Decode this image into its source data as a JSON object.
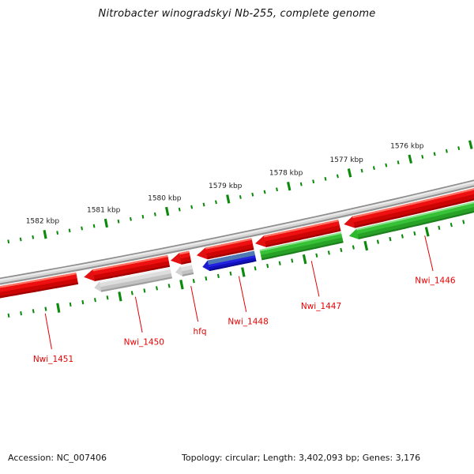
{
  "title": "Nitrobacter winogradskyi Nb-255, complete genome",
  "status_bar": {
    "accession": "Accession: NC_007406",
    "info": "Topology: circular; Length: 3,402,093 bp; Genes: 3,176"
  },
  "chart_data": {
    "type": "other",
    "subtype": "zoomed circular genome map (CGView style)",
    "title": "Nitrobacter winogradskyi Nb-255, complete genome",
    "position_unit": "kbp",
    "visible_range_kbp": [
      1574.4,
      1584.3
    ],
    "orientation": "positions decrease left to right; gene arrows point left (toward higher coordinate)",
    "ruler": {
      "major_tick_interval_kbp": 1,
      "minor_tick_interval_kbp": 0.2,
      "labeled_majors": [
        1576,
        1577,
        1578,
        1579,
        1580,
        1581,
        1582
      ],
      "label_format": "{n} kbp",
      "rows": [
        "outer (above backbone)",
        "inner (below feature rings)"
      ]
    },
    "rings": [
      {
        "name": "backbone",
        "style": "gray beveled band"
      },
      {
        "name": "genes",
        "style": "red beveled arrows, all features"
      },
      {
        "name": "category",
        "style": "same features colored by category (silver / blue / green)"
      }
    ],
    "features": [
      {
        "name": "Nwi_1451",
        "gene_span_kbp": [
          1583.5,
          1581.62
        ],
        "category": null,
        "category_span_kbp": null,
        "label_kbp": 1582.22,
        "arrow_tip": false,
        "category_arrow_tip": false
      },
      {
        "name": "Nwi_1450",
        "gene_span_kbp": [
          1581.51,
          1580.13
        ],
        "category": "silver",
        "category_span_kbp": [
          1581.38,
          1580.13
        ],
        "label_kbp": 1580.76,
        "arrow_tip": true,
        "category_arrow_tip": true
      },
      {
        "name": "hfq",
        "gene_span_kbp": [
          1580.1,
          1579.78
        ],
        "category": "silver",
        "category_span_kbp": [
          1580.06,
          1579.78
        ],
        "label_kbp": 1579.86,
        "arrow_tip": true,
        "category_arrow_tip": true
      },
      {
        "name": "Nwi_1448",
        "gene_span_kbp": [
          1579.675,
          1578.76
        ],
        "category": "blue",
        "category_span_kbp": [
          1579.62,
          1578.76
        ],
        "label_kbp": 1579.08,
        "arrow_tip": true,
        "category_arrow_tip": true
      },
      {
        "name": "Nwi_1447",
        "gene_span_kbp": [
          1578.72,
          1577.34
        ],
        "category": "green",
        "category_span_kbp": [
          1578.67,
          1577.34
        ],
        "label_kbp": 1577.9,
        "arrow_tip": true,
        "category_arrow_tip": false
      },
      {
        "name": "Nwi_1446",
        "gene_span_kbp": [
          1577.27,
          1574.9
        ],
        "category": "green",
        "category_span_kbp": [
          1577.23,
          1574.9
        ],
        "label_kbp": 1576.05,
        "arrow_tip": true,
        "category_arrow_tip": true
      }
    ],
    "colors": {
      "gene_red": "#e21010",
      "category_silver": "#d2d2d2",
      "category_blue": "#1b1bd4",
      "category_blue_highlight": "#4e79b2",
      "category_green": "#2eb82e",
      "backbone_gray": "#d9d9d9",
      "tick_green": "#0c8a0c",
      "label_red": "#e60000",
      "ruler_text": "#1c1c1c"
    }
  }
}
